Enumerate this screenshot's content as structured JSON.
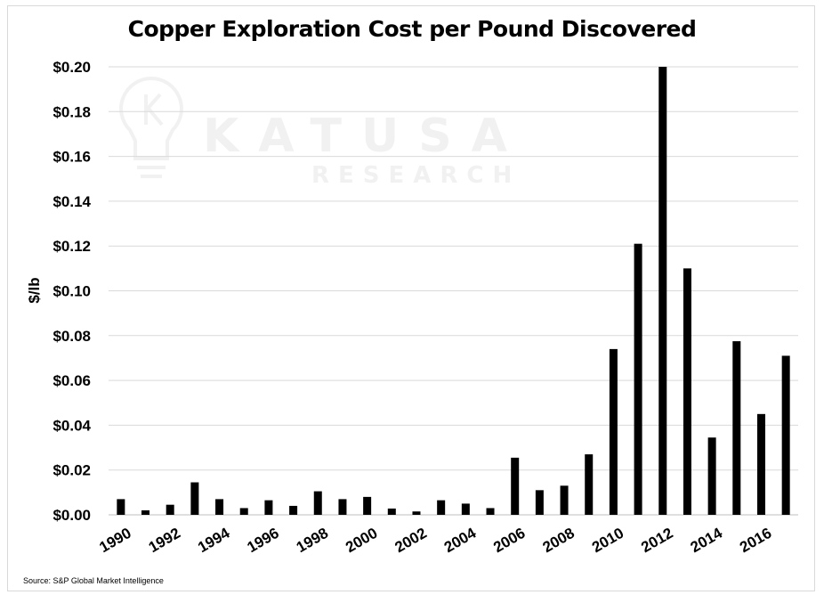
{
  "chart_data": {
    "type": "bar",
    "title": "Copper Exploration Cost per Pound Discovered",
    "xlabel": "",
    "ylabel": "$/lb",
    "ylim": [
      0,
      0.2
    ],
    "yticks": [
      "$0.00",
      "$0.02",
      "$0.04",
      "$0.06",
      "$0.08",
      "$0.10",
      "$0.12",
      "$0.14",
      "$0.16",
      "$0.18",
      "$0.20"
    ],
    "xtick_labels": [
      "1990",
      "1992",
      "1994",
      "1996",
      "1998",
      "2000",
      "2002",
      "2004",
      "2006",
      "2008",
      "2010",
      "2012",
      "2014",
      "2016"
    ],
    "categories": [
      "1990",
      "1991",
      "1992",
      "1993",
      "1994",
      "1995",
      "1996",
      "1997",
      "1998",
      "1999",
      "2000",
      "2001",
      "2002",
      "2003",
      "2004",
      "2005",
      "2006",
      "2007",
      "2008",
      "2009",
      "2010",
      "2011",
      "2012",
      "2013",
      "2014",
      "2015",
      "2016",
      "2017"
    ],
    "values": [
      0.007,
      0.002,
      0.0045,
      0.0145,
      0.007,
      0.003,
      0.0065,
      0.004,
      0.0105,
      0.007,
      0.008,
      0.0028,
      0.0015,
      0.0065,
      0.005,
      0.003,
      0.0255,
      0.011,
      0.013,
      0.027,
      0.074,
      0.121,
      0.2,
      0.11,
      0.0345,
      0.0775,
      0.045,
      0.071
    ],
    "grid": true,
    "bar_color": "#000000",
    "gridline_color": "#d9d9d9"
  },
  "source": "Source: S&P Global Market Intelligence",
  "watermark": {
    "name": "KATUSA",
    "sub": "RESEARCH",
    "icon": "lightbulb-k-icon"
  }
}
